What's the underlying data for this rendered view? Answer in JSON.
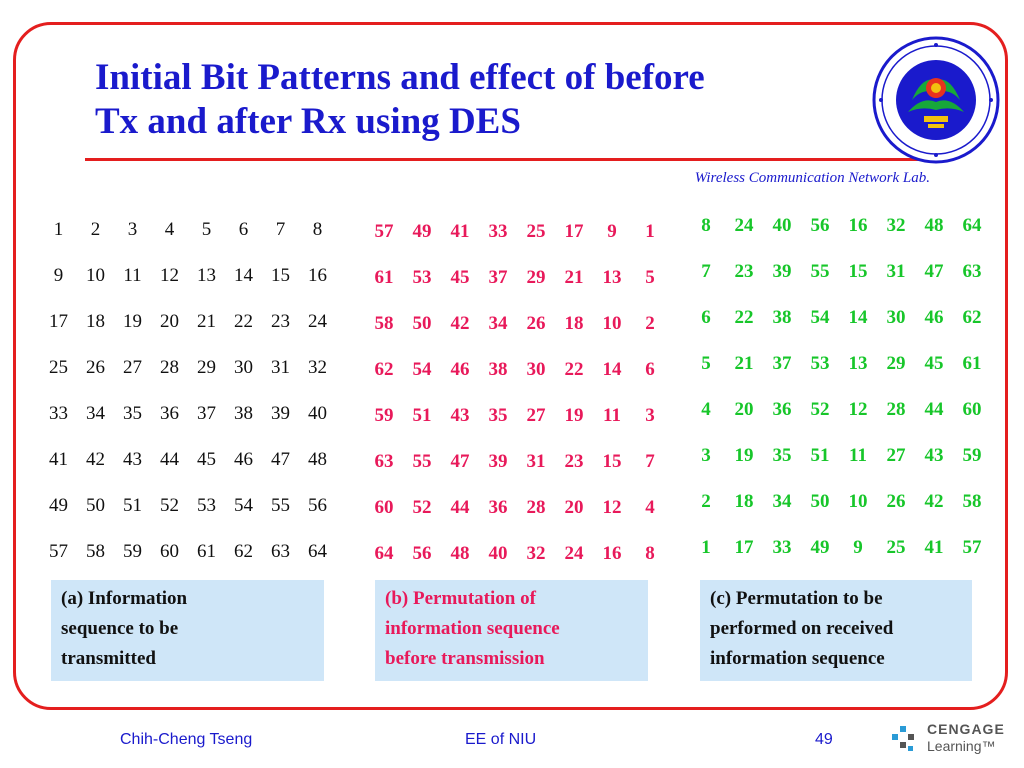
{
  "slide": {
    "title_line1": "Initial Bit Patterns and effect of before",
    "title_line2": "Tx and after Rx using DES",
    "lab_name": "Wireless Communication Network Lab."
  },
  "grid_a": [
    [
      "1",
      "2",
      "3",
      "4",
      "5",
      "6",
      "7",
      "8"
    ],
    [
      "9",
      "10",
      "11",
      "12",
      "13",
      "14",
      "15",
      "16"
    ],
    [
      "17",
      "18",
      "19",
      "20",
      "21",
      "22",
      "23",
      "24"
    ],
    [
      "25",
      "26",
      "27",
      "28",
      "29",
      "30",
      "31",
      "32"
    ],
    [
      "33",
      "34",
      "35",
      "36",
      "37",
      "38",
      "39",
      "40"
    ],
    [
      "41",
      "42",
      "43",
      "44",
      "45",
      "46",
      "47",
      "48"
    ],
    [
      "49",
      "50",
      "51",
      "52",
      "53",
      "54",
      "55",
      "56"
    ],
    [
      "57",
      "58",
      "59",
      "60",
      "61",
      "62",
      "63",
      "64"
    ]
  ],
  "grid_b": [
    [
      "57",
      "49",
      "41",
      "33",
      "25",
      "17",
      "9",
      "1"
    ],
    [
      "61",
      "53",
      "45",
      "37",
      "29",
      "21",
      "13",
      "5"
    ],
    [
      "58",
      "50",
      "42",
      "34",
      "26",
      "18",
      "10",
      "2"
    ],
    [
      "62",
      "54",
      "46",
      "38",
      "30",
      "22",
      "14",
      "6"
    ],
    [
      "59",
      "51",
      "43",
      "35",
      "27",
      "19",
      "11",
      "3"
    ],
    [
      "63",
      "55",
      "47",
      "39",
      "31",
      "23",
      "15",
      "7"
    ],
    [
      "60",
      "52",
      "44",
      "36",
      "28",
      "20",
      "12",
      "4"
    ],
    [
      "64",
      "56",
      "48",
      "40",
      "32",
      "24",
      "16",
      "8"
    ]
  ],
  "grid_c": [
    [
      "8",
      "24",
      "40",
      "56",
      "16",
      "32",
      "48",
      "64"
    ],
    [
      "7",
      "23",
      "39",
      "55",
      "15",
      "31",
      "47",
      "63"
    ],
    [
      "6",
      "22",
      "38",
      "54",
      "14",
      "30",
      "46",
      "62"
    ],
    [
      "5",
      "21",
      "37",
      "53",
      "13",
      "29",
      "45",
      "61"
    ],
    [
      "4",
      "20",
      "36",
      "52",
      "12",
      "28",
      "44",
      "60"
    ],
    [
      "3",
      "19",
      "35",
      "51",
      "11",
      "27",
      "43",
      "59"
    ],
    [
      "2",
      "18",
      "34",
      "50",
      "10",
      "26",
      "42",
      "58"
    ],
    [
      "1",
      "17",
      "33",
      "49",
      "9",
      "25",
      "41",
      "57"
    ]
  ],
  "captions": {
    "a": [
      "(a)  Information",
      "sequence to be",
      "transmitted"
    ],
    "b": [
      "(b)  Permutation of",
      "information sequence",
      "before transmission"
    ],
    "c": [
      "(c)  Permutation to be",
      "performed on received",
      "information sequence"
    ]
  },
  "footer": {
    "author": "Chih-Cheng Tseng",
    "dept": "EE of NIU",
    "page": "49"
  },
  "brand": {
    "name": "CENGAGE",
    "sub": "Learning™"
  },
  "colors": {
    "frame": "#e41e1e",
    "title": "#1a1acc",
    "grid_b": "#e8195a",
    "grid_c": "#17c62a",
    "caption_bg": "#cfe6f8"
  }
}
